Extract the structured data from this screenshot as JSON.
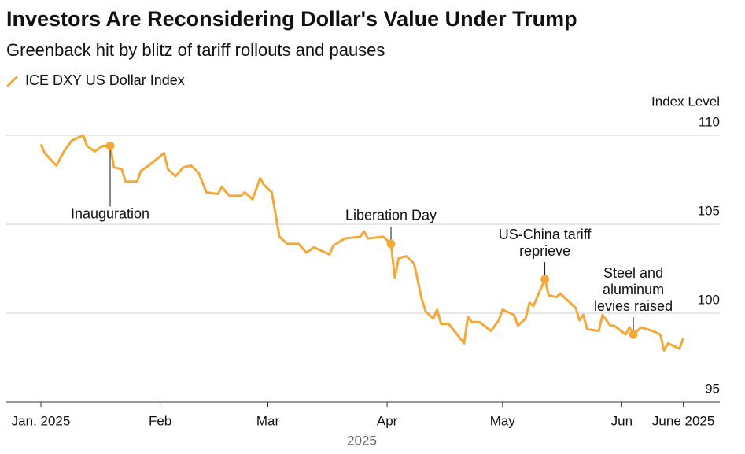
{
  "chart_data": {
    "type": "line",
    "title": "Investors Are Reconsidering Dollar's Value Under Trump",
    "subtitle": "Greenback hit by blitz of tariff rollouts and pauses",
    "ylabel": "Index Level",
    "xlabel": "2025",
    "ylim": [
      95,
      110
    ],
    "yticks": [
      95,
      100,
      105,
      110
    ],
    "xlim": [
      -9,
      176
    ],
    "xticks": [
      {
        "value": 0,
        "label": "Jan. 2025"
      },
      {
        "value": 31,
        "label": "Feb"
      },
      {
        "value": 59,
        "label": "Mar"
      },
      {
        "value": 90,
        "label": "Apr"
      },
      {
        "value": 120,
        "label": "May"
      },
      {
        "value": 151,
        "label": "Jun"
      },
      {
        "value": 167,
        "label": "June 2025"
      }
    ],
    "grid": true,
    "series": [
      {
        "name": "ICE DXY US Dollar Index",
        "color": "#f4a83a",
        "x": [
          0,
          1,
          4,
          6,
          8,
          11,
          12,
          14,
          16,
          18,
          19,
          21,
          22,
          25,
          26,
          28,
          32,
          33,
          35,
          37,
          39,
          41,
          43,
          46,
          47,
          49,
          52,
          53,
          55,
          57,
          58,
          60,
          62,
          64,
          67,
          69,
          71,
          75,
          76,
          79,
          83,
          84,
          85,
          89,
          91,
          92,
          93,
          95,
          97,
          99,
          100,
          102,
          103,
          104,
          106,
          110,
          111,
          112,
          114,
          117,
          119,
          120,
          123,
          124,
          126,
          127,
          128,
          131,
          132,
          134,
          135,
          139,
          140,
          141,
          142,
          145,
          146,
          148,
          149,
          152,
          153,
          154,
          156,
          159,
          161,
          162,
          163,
          166,
          167
        ],
        "values": [
          109.5,
          109.0,
          108.3,
          109.1,
          109.7,
          110.0,
          109.4,
          109.1,
          109.4,
          109.4,
          108.2,
          108.1,
          107.4,
          107.4,
          108.0,
          108.3,
          109.0,
          108.1,
          107.7,
          108.2,
          108.3,
          107.9,
          106.8,
          106.7,
          107.1,
          106.6,
          106.6,
          106.8,
          106.4,
          107.6,
          107.2,
          106.8,
          104.3,
          103.9,
          103.9,
          103.4,
          103.7,
          103.3,
          103.8,
          104.2,
          104.3,
          104.6,
          104.2,
          104.3,
          103.9,
          102.0,
          103.1,
          103.2,
          102.8,
          100.8,
          100.1,
          99.7,
          100.2,
          99.4,
          99.4,
          98.3,
          99.8,
          99.5,
          99.5,
          99.0,
          99.6,
          100.2,
          99.9,
          99.3,
          99.7,
          100.6,
          100.4,
          101.9,
          101.0,
          100.9,
          101.1,
          100.3,
          99.6,
          99.9,
          99.1,
          99.0,
          99.9,
          99.3,
          99.3,
          98.8,
          99.2,
          98.8,
          99.2,
          99.0,
          98.8,
          97.9,
          98.3,
          98.0,
          98.6
        ]
      }
    ],
    "annotations": [
      {
        "label_lines": [
          "Inauguration"
        ],
        "x": 18,
        "y": 109.4
      },
      {
        "label_lines": [
          "Liberation Day"
        ],
        "x": 91,
        "y": 103.9
      },
      {
        "label_lines": [
          "US-China tariff",
          "reprieve"
        ],
        "x": 131,
        "y": 101.9
      },
      {
        "label_lines": [
          "Steel and",
          "aluminum",
          "levies raised"
        ],
        "x": 154,
        "y": 98.8
      }
    ]
  }
}
